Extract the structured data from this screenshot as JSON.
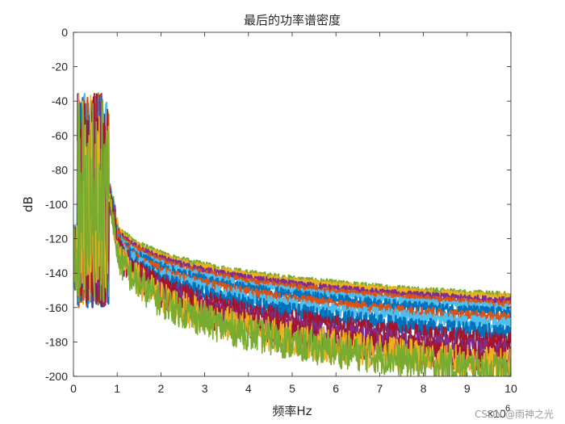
{
  "chart_data": {
    "type": "line",
    "title": "最后的功率谱密度",
    "xlabel": "频率Hz",
    "ylabel": "dB",
    "x_exponent_label": "×10",
    "x_exponent_power": "6",
    "xlim": [
      0,
      10
    ],
    "ylim": [
      -200,
      0
    ],
    "x_ticks": [
      "0",
      "1",
      "2",
      "3",
      "4",
      "5",
      "6",
      "7",
      "8",
      "9",
      "10"
    ],
    "y_ticks": [
      "0",
      "-20",
      "-40",
      "-60",
      "-80",
      "-100",
      "-120",
      "-140",
      "-160",
      "-180",
      "-200"
    ],
    "grid": false,
    "legend": "none",
    "peak_region": {
      "x_range": [
        0.1,
        0.8
      ],
      "peak_db": -35
    },
    "series": [
      {
        "color": "#77AC30",
        "db_at_end": -153,
        "noise": 2
      },
      {
        "color": "#EDB120",
        "db_at_end": -154,
        "noise": 2
      },
      {
        "color": "#7E2F8E",
        "db_at_end": -156,
        "noise": 2
      },
      {
        "color": "#D95319",
        "db_at_end": -158,
        "noise": 2
      },
      {
        "color": "#4DBEEE",
        "db_at_end": -160,
        "noise": 2
      },
      {
        "color": "#0072BD",
        "db_at_end": -163,
        "noise": 3
      },
      {
        "color": "#D95319",
        "db_at_end": -166,
        "noise": 3
      },
      {
        "color": "#4DBEEE",
        "db_at_end": -170,
        "noise": 4
      },
      {
        "color": "#0072BD",
        "db_at_end": -175,
        "noise": 5
      },
      {
        "color": "#A2142F",
        "db_at_end": -180,
        "noise": 6
      },
      {
        "color": "#7E2F8E",
        "db_at_end": -186,
        "noise": 7
      },
      {
        "color": "#A2142F",
        "db_at_end": -190,
        "noise": 9
      },
      {
        "color": "#EDB120",
        "db_at_end": -194,
        "noise": 10
      },
      {
        "color": "#77AC30",
        "db_at_end": -197,
        "noise": 10
      }
    ]
  },
  "watermark": "CSDN @雨神之光"
}
